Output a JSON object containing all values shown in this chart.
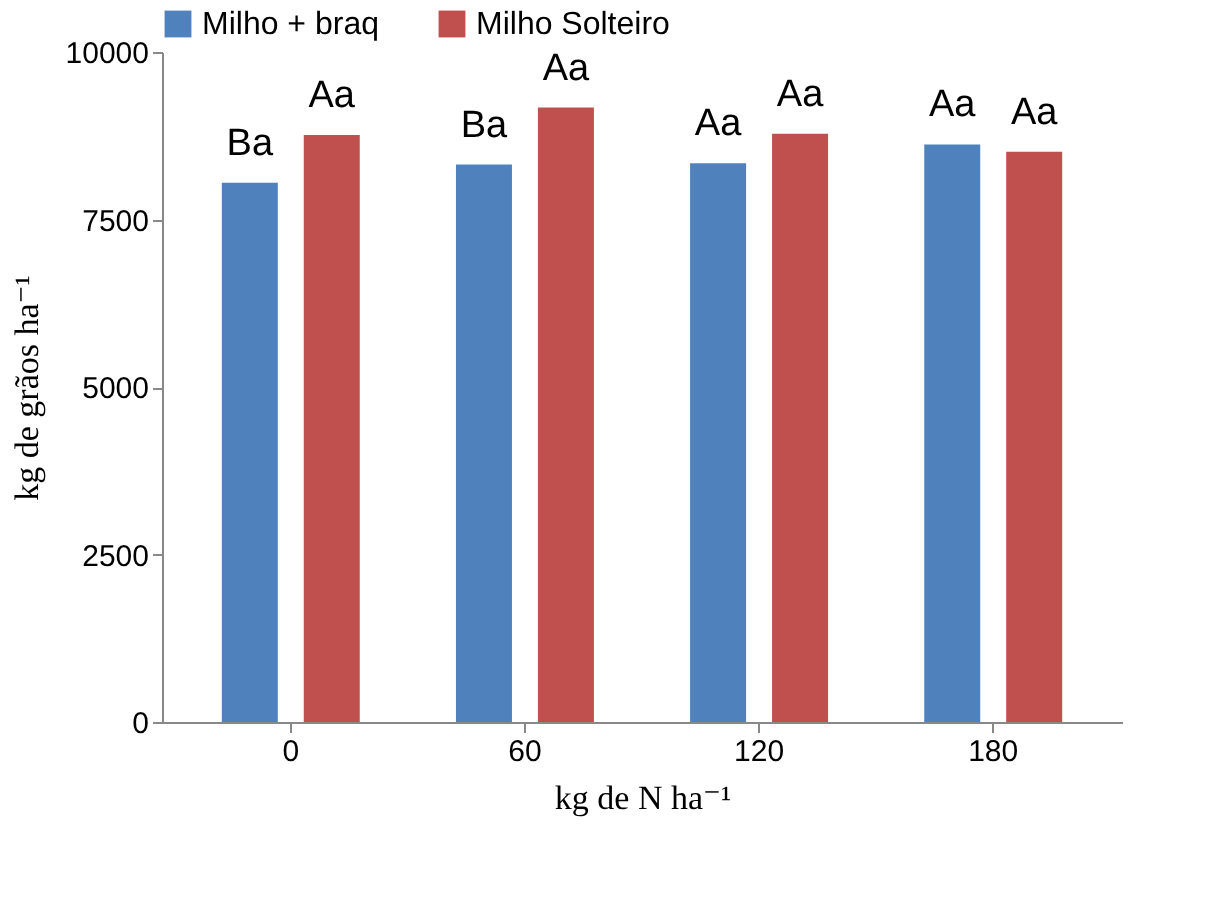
{
  "chart_data": {
    "type": "bar",
    "xlabel": "kg de N ha⁻¹",
    "ylabel": "kg de grãos ha⁻¹",
    "categories": [
      "0",
      "60",
      "120",
      "180"
    ],
    "series": [
      {
        "name": "Milho + braq",
        "color": "#4f81bd",
        "values": [
          8050,
          8320,
          8340,
          8620
        ]
      },
      {
        "name": "Milho Solteiro",
        "color": "#c0504d",
        "values": [
          8760,
          9170,
          8780,
          8510
        ]
      }
    ],
    "ylim": [
      0,
      10000
    ],
    "yticks": [
      0,
      2500,
      5000,
      7500,
      10000
    ],
    "grid": false,
    "legend": "top",
    "annotations": [
      "Ba",
      "Aa",
      "Ba",
      "Aa",
      "Aa",
      "Aa",
      "Aa",
      "Aa"
    ]
  }
}
